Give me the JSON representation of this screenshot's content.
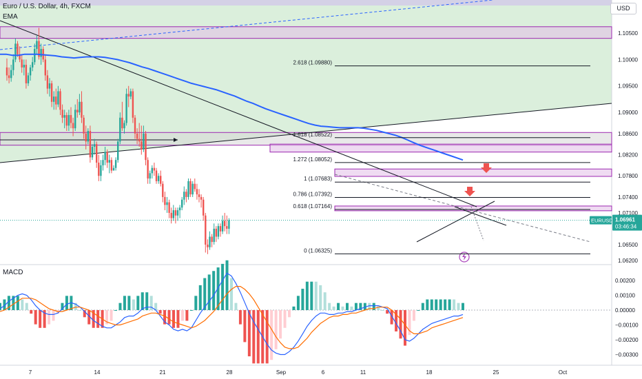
{
  "header": {
    "symbol_title": "Euro / U.S. Dollar, 4h, FXCM",
    "indicator_ema": "EMA",
    "indicator_macd": "MACD",
    "currency_button": "USD"
  },
  "colors": {
    "bull": "#26a69a",
    "bear": "#ef5350",
    "ema": "#2962ff",
    "zone_fill": "#e1bee7",
    "zone_border": "#9c27b0",
    "green_area": "#c8e6c9",
    "macd_line": "#2962ff",
    "signal_line": "#ff6d00",
    "price_label_bg": "#26a69a"
  },
  "price_axis": {
    "labels": [
      "1.10500",
      "1.10000",
      "1.09500",
      "1.09000",
      "1.08600",
      "1.08200",
      "1.07800",
      "1.07400",
      "1.07100",
      "1.06500",
      "1.06200"
    ],
    "values": [
      1.105,
      1.1,
      1.095,
      1.09,
      1.086,
      1.082,
      1.078,
      1.074,
      1.071,
      1.065,
      1.062
    ]
  },
  "current_price": {
    "symbol": "EURUSD",
    "price": "1.06961",
    "countdown": "03:46:34",
    "value": 1.06961
  },
  "macd_axis": {
    "labels": [
      "0.00200",
      "0.00100",
      "0.00000",
      "−0.00100",
      "−0.00200",
      "−0.00300"
    ],
    "values": [
      0.002,
      0.001,
      0.0,
      -0.001,
      -0.002,
      -0.003
    ]
  },
  "time_axis": {
    "labels": [
      "7",
      "14",
      "21",
      "28",
      "Sep",
      "6",
      "11",
      "18",
      "25",
      "Oct"
    ],
    "bars": [
      0,
      30,
      60,
      90,
      114,
      138,
      162,
      192,
      222,
      252
    ]
  },
  "fib_levels": [
    {
      "label": "2.618 (1.09880)",
      "value": 1.0988
    },
    {
      "label": "1.618 (1.08522)",
      "value": 1.08522
    },
    {
      "label": "1.272 (1.08052)",
      "value": 1.08052
    },
    {
      "label": "1 (1.07683)",
      "value": 1.07683
    },
    {
      "label": "0.786 (1.07392)",
      "value": 1.07392
    },
    {
      "label": "0.618 (1.07164)",
      "value": 1.07164
    },
    {
      "label": "0 (1.06325)",
      "value": 1.06325
    }
  ],
  "chart_data": {
    "type": "candlestick",
    "title": "Euro / U.S. Dollar, 4h, FXCM",
    "xlabel": "",
    "ylabel": "",
    "ylim": [
      1.0595,
      1.108
    ],
    "grid": false,
    "ohlc": [
      [
        1.0985,
        1.1002,
        1.096,
        1.097
      ],
      [
        1.097,
        1.0985,
        1.0955,
        1.0965
      ],
      [
        1.0965,
        1.099,
        1.0958,
        1.098
      ],
      [
        1.098,
        1.101,
        1.097,
        1.1
      ],
      [
        1.1,
        1.104,
        1.0995,
        1.103
      ],
      [
        1.103,
        1.1035,
        1.1005,
        1.101
      ],
      [
        1.101,
        1.1025,
        1.0995,
        1.1
      ],
      [
        1.1,
        1.101,
        1.0975,
        1.0985
      ],
      [
        1.0985,
        1.1,
        1.097,
        1.099
      ],
      [
        1.099,
        1.1,
        1.0945,
        1.0955
      ],
      [
        1.0955,
        1.0975,
        1.095,
        1.097
      ],
      [
        1.097,
        1.099,
        1.096,
        1.0985
      ],
      [
        1.0985,
        1.1005,
        1.0978,
        1.0995
      ],
      [
        1.0995,
        1.103,
        1.099,
        1.102
      ],
      [
        1.102,
        1.1045,
        1.101,
        1.1035
      ],
      [
        1.1035,
        1.106,
        1.1,
        1.1005
      ],
      [
        1.1005,
        1.103,
        1.099,
        1.102
      ],
      [
        1.102,
        1.1025,
        1.0995,
        1.1
      ],
      [
        1.1,
        1.101,
        1.096,
        1.097
      ],
      [
        1.097,
        1.098,
        1.0935,
        1.0945
      ],
      [
        1.0945,
        1.0965,
        1.093,
        1.0955
      ],
      [
        1.0955,
        1.096,
        1.091,
        1.092
      ],
      [
        1.092,
        1.094,
        1.0905,
        1.093
      ],
      [
        1.093,
        1.0945,
        1.0905,
        1.0915
      ],
      [
        1.0915,
        1.095,
        1.091,
        1.094
      ],
      [
        1.094,
        1.0945,
        1.0895,
        1.0905
      ],
      [
        1.0905,
        1.0915,
        1.088,
        1.089
      ],
      [
        1.089,
        1.0905,
        1.087,
        1.0895
      ],
      [
        1.0895,
        1.09,
        1.0865,
        1.0875
      ],
      [
        1.0875,
        1.0905,
        1.0865,
        1.0895
      ],
      [
        1.0895,
        1.091,
        1.087,
        1.088
      ],
      [
        1.088,
        1.089,
        1.0855,
        1.087
      ],
      [
        1.087,
        1.0915,
        1.0865,
        1.0905
      ],
      [
        1.0905,
        1.0925,
        1.089,
        1.09
      ],
      [
        1.09,
        1.0935,
        1.0895,
        1.092
      ],
      [
        1.092,
        1.094,
        1.088,
        1.089
      ],
      [
        1.089,
        1.0895,
        1.085,
        1.086
      ],
      [
        1.086,
        1.0875,
        1.083,
        1.0845
      ],
      [
        1.0845,
        1.087,
        1.084,
        1.0865
      ],
      [
        1.0865,
        1.0875,
        1.0805,
        1.0815
      ],
      [
        1.0815,
        1.084,
        1.081,
        1.0835
      ],
      [
        1.0835,
        1.085,
        1.082,
        1.084
      ],
      [
        1.084,
        1.0845,
        1.0795,
        1.0805
      ],
      [
        1.0805,
        1.082,
        1.077,
        1.078
      ],
      [
        1.078,
        1.081,
        1.077,
        1.08
      ],
      [
        1.08,
        1.082,
        1.079,
        1.081
      ],
      [
        1.081,
        1.0835,
        1.08,
        1.0825
      ],
      [
        1.0825,
        1.083,
        1.0795,
        1.0805
      ],
      [
        1.0805,
        1.082,
        1.0785,
        1.081
      ],
      [
        1.081,
        1.0815,
        1.0785,
        1.079
      ],
      [
        1.079,
        1.08,
        1.079,
        1.0795
      ],
      [
        1.0795,
        1.0815,
        1.079,
        1.081
      ],
      [
        1.081,
        1.085,
        1.0805,
        1.0845
      ],
      [
        1.0845,
        1.09,
        1.084,
        1.089
      ],
      [
        1.089,
        1.092,
        1.0865,
        1.087
      ],
      [
        1.087,
        1.0885,
        1.086,
        1.088
      ],
      [
        1.088,
        1.0945,
        1.0875,
        1.0935
      ],
      [
        1.0935,
        1.095,
        1.091,
        1.093
      ],
      [
        1.093,
        1.0945,
        1.0925,
        1.094
      ],
      [
        1.094,
        1.0945,
        1.088,
        1.089
      ],
      [
        1.089,
        1.0895,
        1.085,
        1.086
      ],
      [
        1.086,
        1.087,
        1.084,
        1.085
      ],
      [
        1.085,
        1.088,
        1.0835,
        1.0845
      ],
      [
        1.0845,
        1.0875,
        1.082,
        1.083
      ],
      [
        1.083,
        1.0875,
        1.0825,
        1.086
      ],
      [
        1.086,
        1.0865,
        1.08,
        1.081
      ],
      [
        1.081,
        1.0815,
        1.0765,
        1.0775
      ],
      [
        1.0775,
        1.079,
        1.0765,
        1.0785
      ],
      [
        1.0785,
        1.08,
        1.0775,
        1.0795
      ],
      [
        1.0795,
        1.0805,
        1.078,
        1.079
      ],
      [
        1.079,
        1.0795,
        1.0765,
        1.077
      ],
      [
        1.077,
        1.0785,
        1.0765,
        1.078
      ],
      [
        1.078,
        1.079,
        1.076,
        1.0765
      ],
      [
        1.0765,
        1.077,
        1.073,
        1.074
      ],
      [
        1.074,
        1.075,
        1.0715,
        1.0725
      ],
      [
        1.0725,
        1.074,
        1.071,
        1.073
      ],
      [
        1.073,
        1.0735,
        1.07,
        1.071
      ],
      [
        1.071,
        1.072,
        1.069,
        1.07
      ],
      [
        1.07,
        1.0725,
        1.0695,
        1.0715
      ],
      [
        1.0715,
        1.072,
        1.069,
        1.0705
      ],
      [
        1.0705,
        1.072,
        1.0695,
        1.0715
      ],
      [
        1.0715,
        1.0725,
        1.07,
        1.072
      ],
      [
        1.072,
        1.074,
        1.0715,
        1.0735
      ],
      [
        1.0735,
        1.076,
        1.0725,
        1.075
      ],
      [
        1.075,
        1.0755,
        1.073,
        1.074
      ],
      [
        1.074,
        1.0775,
        1.0735,
        1.077
      ],
      [
        1.077,
        1.0775,
        1.074,
        1.0745
      ],
      [
        1.0745,
        1.077,
        1.074,
        1.0765
      ],
      [
        1.0765,
        1.0775,
        1.075,
        1.0755
      ],
      [
        1.0755,
        1.0765,
        1.0735,
        1.0745
      ],
      [
        1.0745,
        1.0755,
        1.073,
        1.074
      ],
      [
        1.074,
        1.0745,
        1.072,
        1.0735
      ],
      [
        1.0735,
        1.074,
        1.0695,
        1.0705
      ],
      [
        1.0705,
        1.071,
        1.0635,
        1.065
      ],
      [
        1.065,
        1.066,
        1.0632,
        1.0645
      ],
      [
        1.0645,
        1.0675,
        1.064,
        1.0665
      ],
      [
        1.0665,
        1.067,
        1.0645,
        1.0655
      ],
      [
        1.0655,
        1.069,
        1.065,
        1.068
      ],
      [
        1.068,
        1.0685,
        1.0655,
        1.0665
      ],
      [
        1.0665,
        1.069,
        1.066,
        1.0685
      ],
      [
        1.0685,
        1.069,
        1.0665,
        1.0675
      ],
      [
        1.0675,
        1.0705,
        1.067,
        1.0695
      ],
      [
        1.0695,
        1.071,
        1.0675,
        1.0685
      ],
      [
        1.0685,
        1.0705,
        1.067,
        1.068
      ],
      [
        1.068,
        1.07,
        1.067,
        1.0696
      ]
    ],
    "ema": [
      1.101,
      1.101,
      1.1008,
      1.1008,
      1.101,
      1.101,
      1.101,
      1.1009,
      1.1008,
      1.1007,
      1.1005,
      1.1004,
      1.1003,
      1.1004,
      1.1005,
      1.1005,
      1.1005,
      1.1004,
      1.1002,
      1.1,
      1.0997,
      1.0994,
      1.099,
      1.0986,
      1.0983,
      1.0979,
      1.0975,
      1.0971,
      1.0967,
      1.0963,
      1.0959,
      1.0955,
      1.0952,
      1.0949,
      1.0946,
      1.0943,
      1.0939,
      1.0935,
      1.0931,
      1.0926,
      1.0921,
      1.0917,
      1.0912,
      1.0907,
      1.0903,
      1.0899,
      1.0895,
      1.0891,
      1.0887,
      1.0883,
      1.0879,
      1.0876,
      1.0874,
      1.0873,
      1.0872,
      1.0871,
      1.0871,
      1.0871,
      1.0871,
      1.087,
      1.0868,
      1.0866,
      1.0863,
      1.086,
      1.0857,
      1.0853,
      1.0848,
      1.0843,
      1.0838,
      1.0834,
      1.083,
      1.0826,
      1.0822,
      1.0818,
      1.0814,
      1.081
    ],
    "macd": {
      "macd": [
        0.0001,
        0.0003,
        0.0006,
        0.0008,
        0.001,
        0.0011,
        0.001,
        0.0007,
        0.0003,
        0.0,
        -0.0002,
        -0.0003,
        -0.0003,
        -0.0002,
        0.0001,
        0.0004,
        0.0005,
        0.0004,
        0.0002,
        -0.0001,
        -0.0004,
        -0.0007,
        -0.0009,
        -0.0011,
        -0.0012,
        -0.0012,
        -0.001,
        -0.0008,
        -0.0005,
        -0.0004,
        -0.0004,
        -0.0002,
        0.0001,
        0.0002,
        0.0002,
        0.0,
        -0.0004,
        -0.0008,
        -0.001,
        -0.0013,
        -0.0014,
        -0.0013,
        -0.0014,
        -0.0012,
        -0.0007,
        -0.0002,
        0.0002,
        0.0006,
        0.001,
        0.0015,
        0.002,
        0.0025,
        0.0023,
        0.0018,
        0.0012,
        0.0005,
        -0.0002,
        -0.0008,
        -0.0013,
        -0.0018,
        -0.0023,
        -0.0027,
        -0.0029,
        -0.003,
        -0.003,
        -0.0028,
        -0.0025,
        -0.0021,
        -0.0016,
        -0.0011,
        -0.0007,
        -0.0004,
        -0.0002,
        -0.0002,
        -0.0003,
        -0.0003,
        -0.0002,
        -0.0002,
        -0.0001,
        -0.0001,
        0.0,
        0.0001,
        0.0002,
        0.0003,
        0.0003,
        0.0003,
        0.0002,
        0.0001,
        -0.0004,
        -0.0009,
        -0.0014,
        -0.002,
        -0.0021,
        -0.0019,
        -0.0016,
        -0.0013,
        -0.0011,
        -0.0009,
        -0.0008,
        -0.0007,
        -0.0006,
        -0.0005,
        -0.0004,
        -0.0004,
        -0.0003
      ],
      "signal": [
        -0.0001,
        0.0,
        0.0002,
        0.0004,
        0.0006,
        0.0008,
        0.0008,
        0.0008,
        0.0007,
        0.0005,
        0.0003,
        0.0001,
        0.0,
        -0.0001,
        -0.0001,
        0.0,
        0.0001,
        0.0002,
        0.0002,
        0.0001,
        0.0,
        -0.0002,
        -0.0004,
        -0.0006,
        -0.0008,
        -0.0009,
        -0.001,
        -0.001,
        -0.0009,
        -0.0008,
        -0.0007,
        -0.0006,
        -0.0004,
        -0.0003,
        -0.0002,
        -0.0002,
        -0.0003,
        -0.0004,
        -0.0006,
        -0.0008,
        -0.0009,
        -0.001,
        -0.0011,
        -0.0012,
        -0.0011,
        -0.0009,
        -0.0007,
        -0.0004,
        -0.0001,
        0.0003,
        0.0007,
        0.0011,
        0.0014,
        0.0016,
        0.0016,
        0.0014,
        0.0011,
        0.0007,
        0.0002,
        -0.0003,
        -0.0008,
        -0.0013,
        -0.0018,
        -0.0022,
        -0.0025,
        -0.0026,
        -0.0026,
        -0.0025,
        -0.0022,
        -0.0019,
        -0.0015,
        -0.0012,
        -0.0009,
        -0.0007,
        -0.0005,
        -0.0004,
        -0.0004,
        -0.0003,
        -0.0003,
        -0.0002,
        -0.0002,
        -0.0001,
        0.0,
        0.0001,
        0.0001,
        0.0002,
        0.0002,
        0.0002,
        0.0,
        -0.0003,
        -0.0006,
        -0.001,
        -0.0014,
        -0.0016,
        -0.0016,
        -0.0015,
        -0.0014,
        -0.0012,
        -0.0011,
        -0.001,
        -0.0009,
        -0.0008,
        -0.0007,
        -0.0006,
        -0.0005
      ],
      "ylim": [
        -0.0033,
        0.003
      ]
    }
  }
}
